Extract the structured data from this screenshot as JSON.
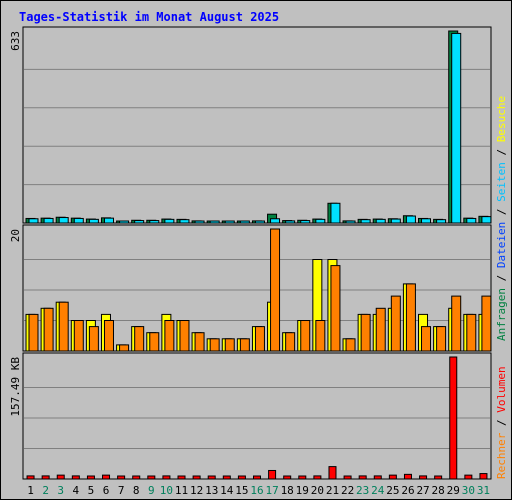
{
  "chart_data": {
    "type": "bar",
    "title": "Tages-Statistik im Monat August 2025",
    "days": [
      "1",
      "2",
      "3",
      "4",
      "5",
      "6",
      "7",
      "8",
      "9",
      "10",
      "11",
      "12",
      "13",
      "14",
      "15",
      "16",
      "17",
      "18",
      "19",
      "20",
      "21",
      "22",
      "23",
      "24",
      "25",
      "26",
      "27",
      "28",
      "29",
      "30",
      "31"
    ],
    "weekend_days": [
      "2",
      "3",
      "9",
      "10",
      "16",
      "17",
      "23",
      "24",
      "30",
      "31"
    ],
    "colors": {
      "anfragen": "#008040",
      "dateien": "#00e0ff",
      "seiten": "#00c0ff",
      "besuche": "#ffff00",
      "rechner": "#ff8000",
      "volumen": "#ff0000",
      "weekday": "#000000",
      "weekend": "#00805c"
    },
    "panels": [
      {
        "name": "requests",
        "max_label": "633",
        "ymax": 633,
        "series": [
          {
            "name": "Anfragen",
            "values": [
              15,
              16,
              19,
              16,
              13,
              17,
              4,
              9,
              9,
              13,
              12,
              7,
              4,
              4,
              4,
              7,
              29,
              8,
              9,
              13,
              65,
              7,
              12,
              13,
              14,
              24,
              15,
              12,
              633,
              16,
              22
            ]
          },
          {
            "name": "Dateien",
            "values": [
              14,
              15,
              18,
              15,
              12,
              16,
              4,
              8,
              8,
              12,
              11,
              6,
              4,
              4,
              4,
              6,
              14,
              7,
              8,
              12,
              65,
              6,
              11,
              12,
              13,
              23,
              14,
              11,
              625,
              15,
              21
            ]
          }
        ]
      },
      {
        "name": "visits",
        "max_label": "20",
        "ymax": 20,
        "series": [
          {
            "name": "Besuche",
            "values": [
              6,
              7,
              8,
              5,
              5,
              6,
              1,
              4,
              3,
              6,
              5,
              3,
              2,
              2,
              2,
              4,
              8,
              3,
              5,
              15,
              15,
              2,
              6,
              6,
              7,
              11,
              6,
              4,
              7,
              6,
              6
            ]
          },
          {
            "name": "Rechner",
            "values": [
              6,
              7,
              8,
              5,
              4,
              5,
              1,
              4,
              3,
              5,
              5,
              3,
              2,
              2,
              2,
              4,
              20,
              3,
              5,
              5,
              14,
              2,
              6,
              7,
              9,
              11,
              4,
              4,
              9,
              6,
              9
            ]
          }
        ]
      },
      {
        "name": "volume",
        "max_label": "157.49 KB",
        "ymax": 157.49,
        "series": [
          {
            "name": "Volumen",
            "values": [
              4,
              4,
              5,
              4,
              3,
              5,
              2,
              3,
              3,
              4,
              3,
              2,
              2,
              2,
              2,
              3,
              11,
              3,
              3,
              4,
              16,
              2,
              4,
              4,
              5,
              6,
              4,
              3,
              157.49,
              5,
              7
            ]
          }
        ]
      }
    ],
    "legend": {
      "top_right": [
        "Anfragen",
        "Dateien",
        "Seiten",
        "Besuche"
      ],
      "bottom_right": [
        "Rechner",
        "Volumen"
      ]
    }
  }
}
